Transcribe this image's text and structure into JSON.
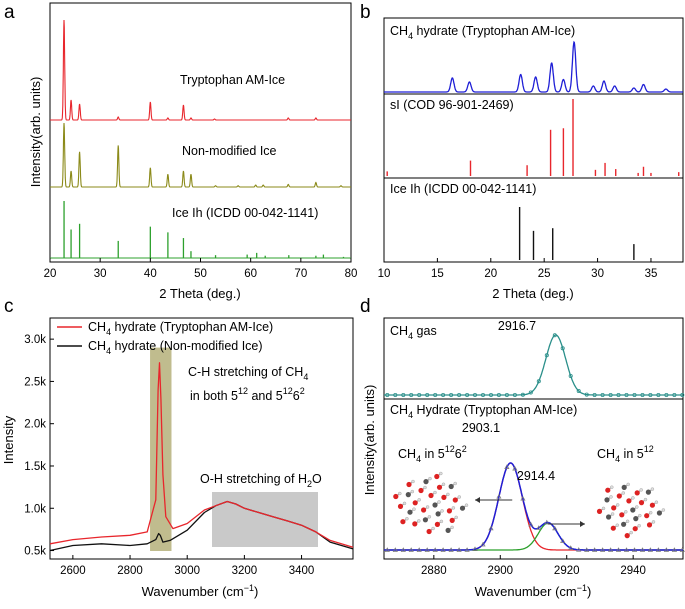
{
  "colors": {
    "red": "#e8262c",
    "olive": "#8b8a19",
    "green": "#2ca02c",
    "blue": "#1f1fd6",
    "black": "#111111",
    "teal": "#2a8f8a",
    "grid_box": "#c9c9c9",
    "olive_box": "#b5b07a"
  },
  "chart_data": [
    {
      "panel": "a",
      "type": "line",
      "xlabel": "2 Theta (deg.)",
      "ylabel": "Intensity(arb. units)",
      "xlim": [
        20,
        80
      ],
      "xticks": [
        20,
        30,
        40,
        50,
        60,
        70,
        80
      ],
      "series": [
        {
          "name": "Tryptophan AM-Ice",
          "color": "red",
          "peaks": [
            [
              22.8,
              1.0
            ],
            [
              24.2,
              0.2
            ],
            [
              25.9,
              0.16
            ],
            [
              33.6,
              0.03
            ],
            [
              40.0,
              0.18
            ],
            [
              43.5,
              0.02
            ],
            [
              46.6,
              0.15
            ],
            [
              48.1,
              0.02
            ],
            [
              52.8,
              0.01
            ],
            [
              67.5,
              0.02
            ],
            [
              73.0,
              0.02
            ]
          ]
        },
        {
          "name": "Non-modified Ice",
          "color": "olive",
          "peaks": [
            [
              22.8,
              1.0
            ],
            [
              24.2,
              0.25
            ],
            [
              25.9,
              0.55
            ],
            [
              33.6,
              0.65
            ],
            [
              40.0,
              0.3
            ],
            [
              43.5,
              0.2
            ],
            [
              46.6,
              0.25
            ],
            [
              48.1,
              0.2
            ],
            [
              53.0,
              0.02
            ],
            [
              57.5,
              0.02
            ],
            [
              61.0,
              0.03
            ],
            [
              62.5,
              0.03
            ],
            [
              67.5,
              0.04
            ],
            [
              73.0,
              0.07
            ],
            [
              78.0,
              0.02
            ]
          ]
        },
        {
          "name": "Ice Ih (ICDD 00-042-1141)",
          "color": "green",
          "type": "stick",
          "peaks": [
            [
              22.8,
              1.0
            ],
            [
              24.2,
              0.5
            ],
            [
              25.9,
              0.6
            ],
            [
              33.6,
              0.3
            ],
            [
              40.0,
              0.55
            ],
            [
              43.5,
              0.45
            ],
            [
              46.6,
              0.35
            ],
            [
              48.1,
              0.12
            ],
            [
              53.0,
              0.05
            ],
            [
              59.3,
              0.06
            ],
            [
              61.2,
              0.09
            ],
            [
              62.9,
              0.04
            ],
            [
              67.6,
              0.05
            ],
            [
              73.0,
              0.04
            ],
            [
              74.5,
              0.06
            ],
            [
              78.5,
              0.02
            ]
          ]
        }
      ]
    },
    {
      "panel": "b",
      "type": "line",
      "xlabel": "2 Theta (deg.)",
      "ylabel": "Intensity(arb. units)",
      "xlim": [
        10,
        38
      ],
      "xticks": [
        10,
        15,
        20,
        25,
        30,
        35
      ],
      "series": [
        {
          "name": "CH4 hydrate (Tryptophan AM-Ice)",
          "color": "blue",
          "peaks": [
            [
              16.4,
              0.28
            ],
            [
              18.0,
              0.2
            ],
            [
              22.8,
              0.35
            ],
            [
              24.2,
              0.3
            ],
            [
              25.7,
              0.58
            ],
            [
              26.8,
              0.25
            ],
            [
              27.8,
              1.0
            ],
            [
              29.6,
              0.12
            ],
            [
              30.6,
              0.22
            ],
            [
              31.6,
              0.12
            ],
            [
              33.4,
              0.08
            ],
            [
              34.3,
              0.15
            ],
            [
              36.4,
              0.06
            ]
          ]
        },
        {
          "name": "sI (COD 96-901-2469)",
          "color": "red",
          "type": "stick",
          "peaks": [
            [
              10.3,
              0.06
            ],
            [
              18.1,
              0.2
            ],
            [
              23.4,
              0.14
            ],
            [
              25.6,
              0.6
            ],
            [
              26.8,
              0.62
            ],
            [
              27.7,
              1.0
            ],
            [
              29.8,
              0.08
            ],
            [
              30.7,
              0.17
            ],
            [
              31.7,
              0.09
            ],
            [
              33.8,
              0.04
            ],
            [
              34.3,
              0.12
            ],
            [
              35.0,
              0.04
            ],
            [
              37.6,
              0.05
            ]
          ]
        },
        {
          "name": "Ice Ih (ICDD 00-042-1141)",
          "color": "black",
          "type": "stick",
          "peaks": [
            [
              22.7,
              1.0
            ],
            [
              24.0,
              0.55
            ],
            [
              25.8,
              0.6
            ],
            [
              33.4,
              0.3
            ]
          ]
        }
      ]
    },
    {
      "panel": "c",
      "type": "line",
      "xlabel": "Wavenumber (cm⁻¹)",
      "ylabel": "Intensity",
      "xlim": [
        2520,
        3580
      ],
      "ylim": [
        0.4,
        3.25
      ],
      "xticks": [
        2600,
        2800,
        3000,
        3200,
        3400
      ],
      "yticks": [
        0.5,
        1.0,
        1.5,
        2.0,
        2.5,
        3.0
      ],
      "ytick_labels": [
        "0.5k",
        "1.0k",
        "1.5k",
        "2.0k",
        "2.5k",
        "3.0k"
      ],
      "series": [
        {
          "name": "CH4 hydrate (Tryptophan AM-Ice)",
          "color": "red",
          "x": [
            2520,
            2600,
            2700,
            2800,
            2860,
            2890,
            2898,
            2903,
            2908,
            2915,
            2925,
            2950,
            3000,
            3060,
            3100,
            3140,
            3170,
            3200,
            3250,
            3300,
            3350,
            3400,
            3450,
            3500,
            3580
          ],
          "values": [
            0.58,
            0.63,
            0.66,
            0.68,
            0.72,
            1.1,
            2.4,
            2.72,
            2.3,
            1.4,
            0.9,
            0.76,
            0.82,
            0.98,
            1.03,
            1.08,
            1.05,
            1.0,
            0.95,
            0.9,
            0.85,
            0.8,
            0.72,
            0.62,
            0.54
          ]
        },
        {
          "name": "CH4 hydrate (Non-modified Ice)",
          "color": "black",
          "x": [
            2520,
            2600,
            2700,
            2800,
            2860,
            2890,
            2900,
            2906,
            2915,
            2940,
            3000,
            3060,
            3100,
            3140,
            3170,
            3200,
            3250,
            3300,
            3350,
            3400,
            3450,
            3500,
            3580
          ],
          "values": [
            0.5,
            0.56,
            0.58,
            0.56,
            0.58,
            0.63,
            0.7,
            0.68,
            0.6,
            0.62,
            0.74,
            0.95,
            1.03,
            1.08,
            1.05,
            1.0,
            0.95,
            0.9,
            0.85,
            0.8,
            0.72,
            0.6,
            0.52
          ]
        }
      ],
      "annotations": [
        "C-H stretching of CH",
        "4",
        "in both 5",
        "12",
        " and 5",
        "12",
        "6",
        "2",
        "O-H stretching of H",
        "2",
        "O"
      ]
    },
    {
      "panel": "d",
      "type": "line",
      "xlabel": "Wavenumber (cm⁻¹)",
      "ylabel": "Intensity(arb. units)",
      "xlim": [
        2865,
        2955
      ],
      "xticks": [
        2880,
        2900,
        2920,
        2940
      ],
      "subplots": [
        {
          "name": "CH4 gas",
          "peak": 2916.7,
          "fit_color": "teal"
        },
        {
          "name": "CH4 Hydrate (Tryptophan AM-Ice)",
          "peaks": [
            2903.1,
            2914.4
          ],
          "fit_colors": [
            "red",
            "green"
          ],
          "envelope_color": "blue"
        }
      ]
    }
  ],
  "labels": {
    "panel_a": "a",
    "panel_b": "b",
    "panel_c": "c",
    "panel_d": "d",
    "a_tryptophan": "Tryptophan AM-Ice",
    "a_nonmod": "Non-modified Ice",
    "a_iceih": "Ice Ih (ICDD 00-042-1141)",
    "b_ch4_pre": "CH",
    "b_ch4_sub": "4",
    "b_ch4_post": " hydrate (Tryptophan AM-Ice)",
    "b_si": "sI (COD 96-901-2469)",
    "b_iceih": "Ice Ih (ICDD 00-042-1141)",
    "c_leg1_pre": "CH",
    "c_leg1_sub": "4",
    "c_leg1_post": " hydrate (Tryptophan AM-Ice)",
    "c_leg2_pre": "CH",
    "c_leg2_sub": "4",
    "c_leg2_post": " hydrate (Non-modified Ice)",
    "c_ann1a": "C-H stretching of CH",
    "c_ann1a_sub": "4",
    "c_ann1b": "in both 5",
    "c_ann1b_sup1": "12",
    "c_ann1b_mid": " and 5",
    "c_ann1b_sup2": "12",
    "c_ann1b_mid2": "6",
    "c_ann1b_sup3": "2",
    "c_ann2": "O-H stretching of H",
    "c_ann2_sub": "2",
    "c_ann2_post": "O",
    "d_gas_pre": "CH",
    "d_gas_sub": "4",
    "d_gas_post": " gas",
    "d_gas_peak": "2916.7",
    "d_hyd_pre": "CH",
    "d_hyd_sub": "4",
    "d_hyd_post": " Hydrate (Tryptophan AM-Ice)",
    "d_peak1": "2903.1",
    "d_peak2": "2914.4",
    "d_left_pre": "CH",
    "d_left_sub": "4",
    "d_left_mid": " in 5",
    "d_left_sup1": "12",
    "d_left_mid2": "6",
    "d_left_sup2": "2",
    "d_right_pre": "CH",
    "d_right_sub": "4",
    "d_right_mid": " in 5",
    "d_right_sup": "12",
    "xlabel_theta": "2 Theta (deg.)",
    "xlabel_wave": "Wavenumber (cm",
    "xlabel_wave_sup": "−1",
    "xlabel_wave_post": ")",
    "ylabel_arb": "Intensity(arb. units)",
    "ylabel_int": "Intensity"
  }
}
